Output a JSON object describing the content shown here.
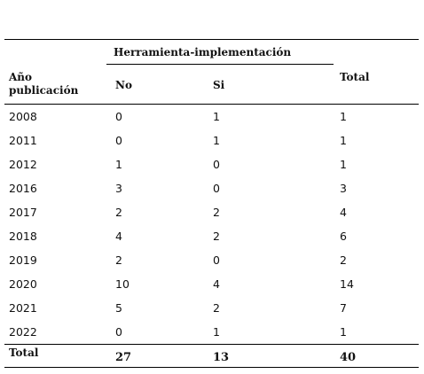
{
  "table": {
    "group_header": "Herramienta-implementación",
    "columns": [
      "Año publicación",
      "No",
      "Si",
      "Total"
    ],
    "rows": [
      [
        "2008",
        "0",
        "1",
        "1"
      ],
      [
        "2011",
        "0",
        "1",
        "1"
      ],
      [
        "2012",
        "1",
        "0",
        "1"
      ],
      [
        "2016",
        "3",
        "0",
        "3"
      ],
      [
        "2017",
        "2",
        "2",
        "4"
      ],
      [
        "2018",
        "4",
        "2",
        "6"
      ],
      [
        "2019",
        "2",
        "0",
        "2"
      ],
      [
        "2020",
        "10",
        "4",
        "14"
      ],
      [
        "2021",
        "5",
        "2",
        "7"
      ],
      [
        "2022",
        "0",
        "1",
        "1"
      ]
    ],
    "total": [
      "Total",
      "27",
      "13",
      "40"
    ]
  }
}
